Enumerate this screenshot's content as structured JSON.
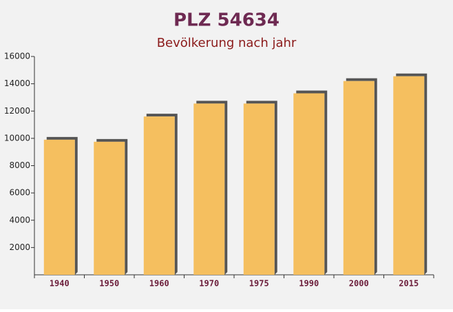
{
  "chart_data": {
    "type": "bar",
    "title": "PLZ 54634",
    "subtitle": "Bevölkerung nach jahr",
    "categories": [
      "1940",
      "1950",
      "1960",
      "1970",
      "1975",
      "1990",
      "2000",
      "2015"
    ],
    "values": [
      9900,
      9750,
      11600,
      12550,
      12550,
      13300,
      14200,
      14550
    ],
    "color": "#f5bf5f",
    "ylim": [
      0,
      16000
    ],
    "yticks": [
      2000,
      4000,
      6000,
      8000,
      10000,
      12000,
      14000,
      16000
    ],
    "grid": false
  }
}
